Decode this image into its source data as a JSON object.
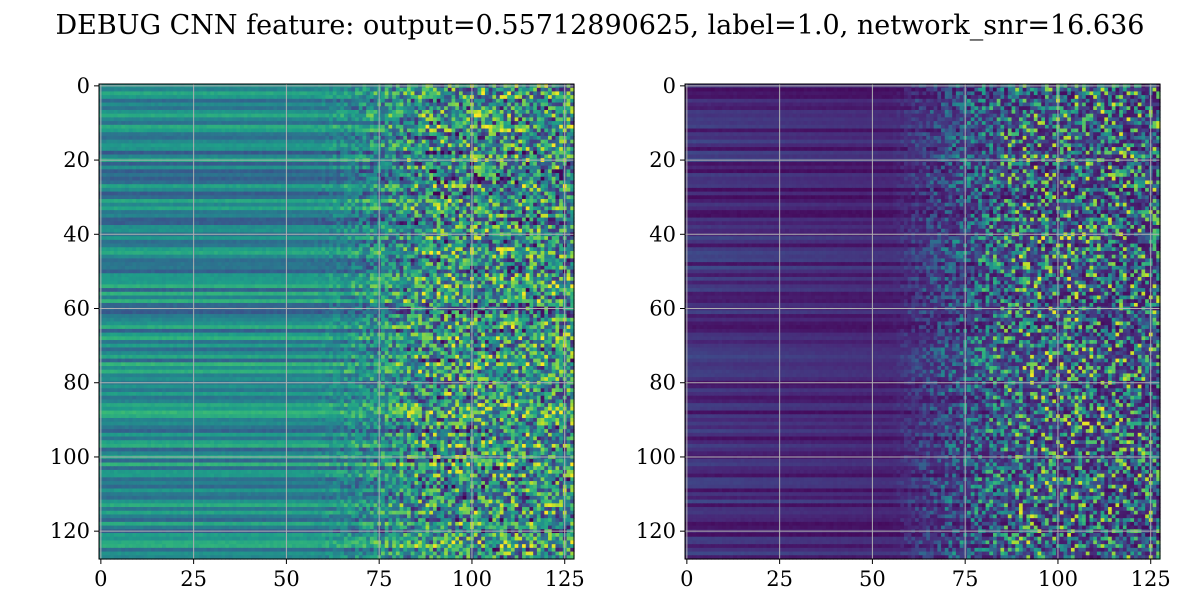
{
  "title": "DEBUG CNN feature: output=0.55712890625, label=1.0, network_snr=16.636",
  "chart_data": [
    {
      "type": "heatmap",
      "colormap": "viridis",
      "grid": true,
      "rows": 128,
      "cols": 128,
      "xlim": [
        -0.5,
        127.5
      ],
      "ylim": [
        127.5,
        -0.5
      ],
      "xticks": [
        0,
        25,
        50,
        75,
        100,
        125
      ],
      "yticks": [
        0,
        20,
        40,
        60,
        80,
        100,
        120
      ],
      "xtick_labels": [
        "0",
        "25",
        "50",
        "75",
        "100",
        "125"
      ],
      "ytick_labels": [
        "0",
        "20",
        "40",
        "60",
        "80",
        "100",
        "120"
      ],
      "pattern": "horizontal bands across columns 0-60, increasing noise from column 75 onward, moderate brightness (teal-green)",
      "mean_level": 0.45
    },
    {
      "type": "heatmap",
      "colormap": "viridis",
      "grid": true,
      "rows": 128,
      "cols": 128,
      "xlim": [
        -0.5,
        127.5
      ],
      "ylim": [
        127.5,
        -0.5
      ],
      "xticks": [
        0,
        25,
        50,
        75,
        100,
        125
      ],
      "yticks": [
        0,
        20,
        40,
        60,
        80,
        100,
        120
      ],
      "xtick_labels": [
        "0",
        "25",
        "50",
        "75",
        "100",
        "125"
      ],
      "ytick_labels": [
        "0",
        "20",
        "40",
        "60",
        "80",
        "100",
        "120"
      ],
      "pattern": "dark purple background with faint horizontal bands, sparse bright noise from column 70 onward",
      "mean_level": 0.12
    }
  ]
}
